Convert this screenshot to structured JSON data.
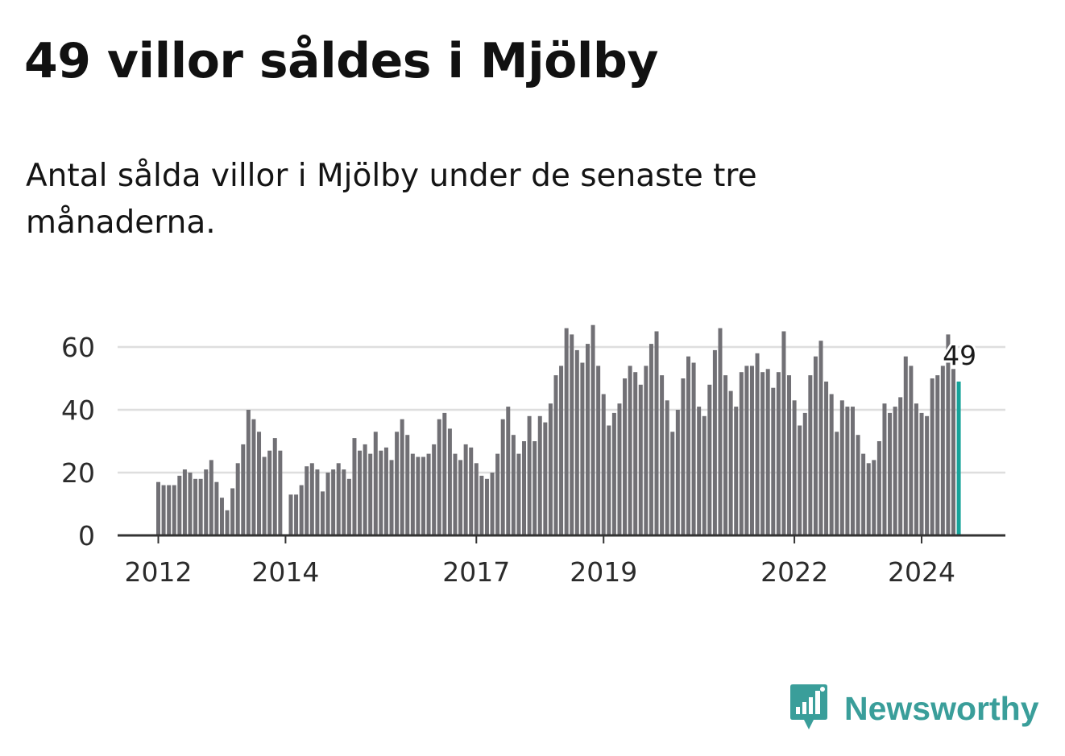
{
  "title": "49 villor såldes i Mjölby",
  "subtitle": "Antal sålda villor i Mjölby under de senaste tre månaderna.",
  "brand": {
    "name": "Newsworthy",
    "icon": "bar-chart-speech-bubble-icon",
    "color": "#3a9e9a"
  },
  "colors": {
    "bar": "#717075",
    "highlight": "#16a39a",
    "grid": "#dedede",
    "axis": "#333333",
    "label": "#2b2b2b"
  },
  "chart_data": {
    "type": "bar",
    "title": "49 villor såldes i Mjölby",
    "xlabel": "",
    "ylabel": "",
    "ylim": [
      0,
      70
    ],
    "yticks": [
      0,
      20,
      40,
      60
    ],
    "xticks": [
      {
        "label": "2012",
        "x": "2012-01"
      },
      {
        "label": "2014",
        "x": "2014-01"
      },
      {
        "label": "2017",
        "x": "2017-01"
      },
      {
        "label": "2019",
        "x": "2019-01"
      },
      {
        "label": "2022",
        "x": "2022-01"
      },
      {
        "label": "2024",
        "x": "2024-01"
      }
    ],
    "start_month": "2012-01",
    "grid": true,
    "highlight_label": "49",
    "values": [
      17,
      16,
      16,
      16,
      19,
      21,
      20,
      18,
      18,
      21,
      24,
      17,
      12,
      8,
      15,
      23,
      29,
      40,
      37,
      33,
      25,
      27,
      31,
      27,
      null,
      13,
      13,
      16,
      22,
      23,
      21,
      14,
      20,
      21,
      23,
      21,
      18,
      31,
      27,
      29,
      26,
      33,
      27,
      28,
      24,
      33,
      37,
      32,
      26,
      25,
      25,
      26,
      29,
      37,
      39,
      34,
      26,
      24,
      29,
      28,
      23,
      19,
      18,
      20,
      26,
      37,
      41,
      32,
      26,
      30,
      38,
      30,
      38,
      36,
      42,
      51,
      54,
      66,
      64,
      59,
      55,
      61,
      67,
      54,
      45,
      35,
      39,
      42,
      50,
      54,
      52,
      48,
      54,
      61,
      65,
      51,
      43,
      33,
      40,
      50,
      57,
      55,
      41,
      38,
      48,
      59,
      66,
      51,
      46,
      41,
      52,
      54,
      54,
      58,
      52,
      53,
      47,
      52,
      65,
      51,
      43,
      35,
      39,
      51,
      57,
      62,
      49,
      45,
      33,
      43,
      41,
      41,
      32,
      26,
      23,
      24,
      30,
      42,
      39,
      41,
      44,
      57,
      54,
      42,
      39,
      38,
      50,
      51,
      54,
      64,
      53,
      49
    ]
  }
}
